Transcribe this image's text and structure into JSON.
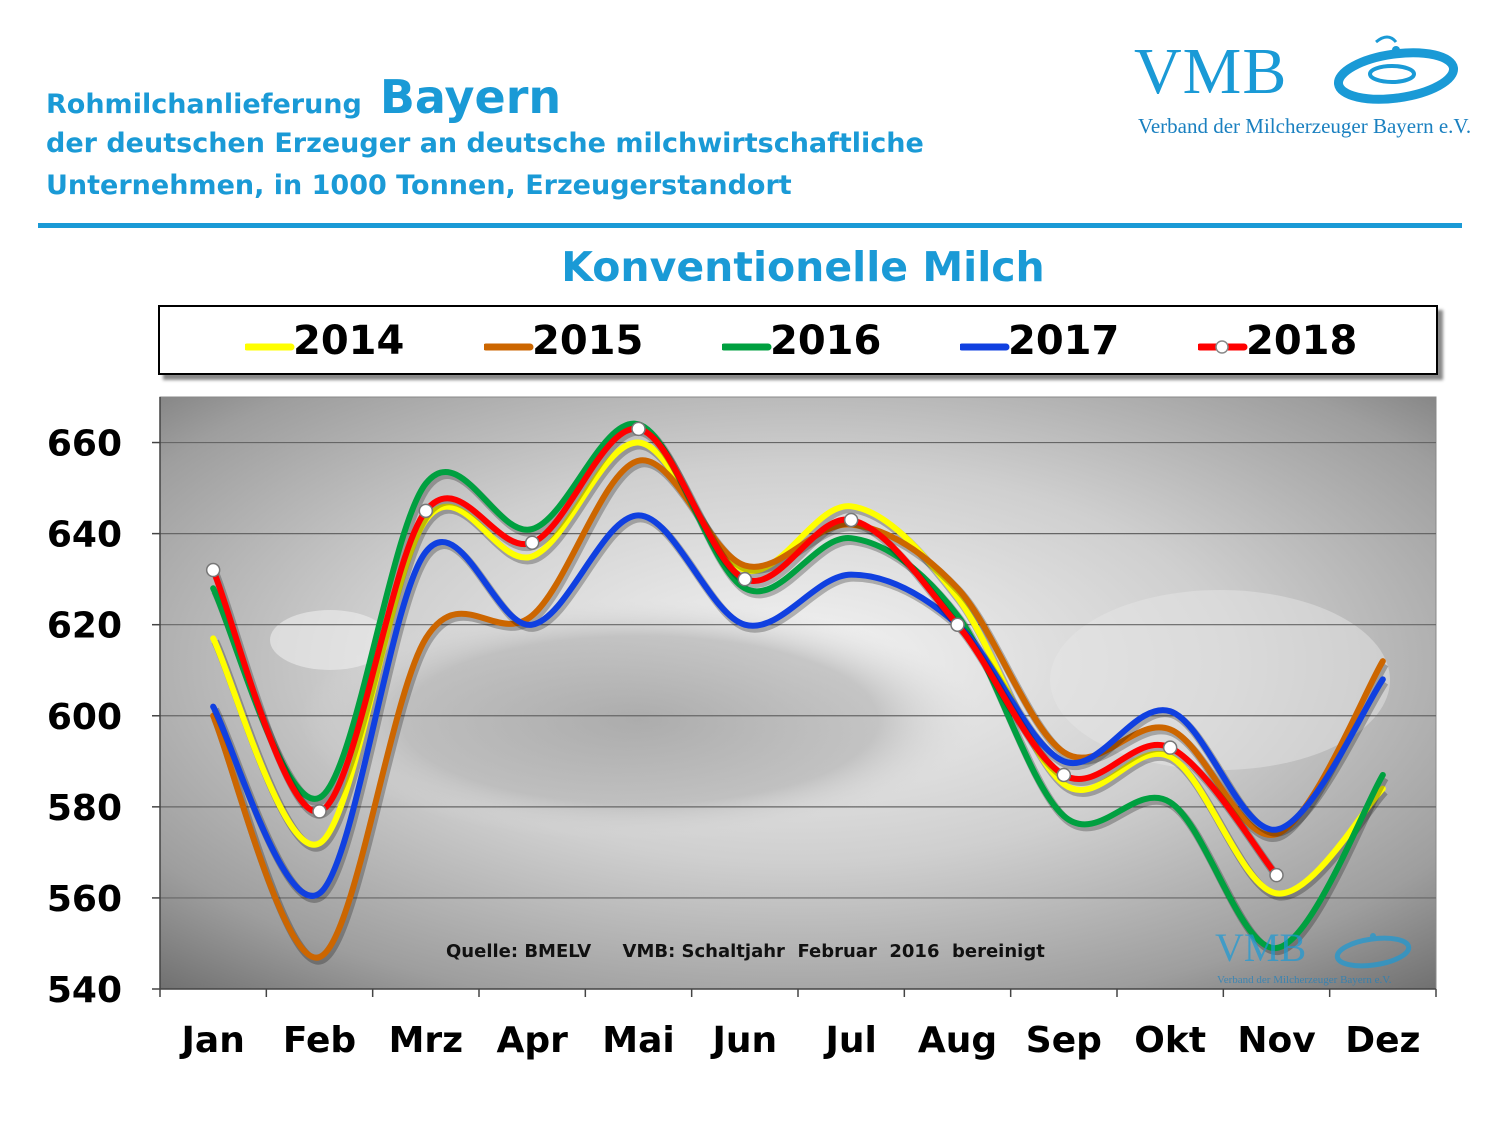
{
  "header": {
    "title_small": "Rohmilchanlieferung",
    "title_big": "Bayern",
    "line2": "der deutschen Erzeuger an deutsche milchwirtschaftliche",
    "line3": "Unternehmen, in 1000 Tonnen, Erzeugerstandort"
  },
  "logo": {
    "name": "VMB",
    "subtitle": "Verband der Milcherzeuger Bayern e.V.",
    "icon": "vmb-swirl-icon"
  },
  "source_note": "Quelle: BMELV     VMB: Schaltjahr  Februar  2016  bereinigt",
  "colors": {
    "title_blue": "#1a9ad6",
    "2014": "#ffff00",
    "2015": "#cc6600",
    "2016": "#00a040",
    "2017": "#1040e0",
    "2018": "#ff0000"
  },
  "chart_data": {
    "type": "line",
    "title": "Konventionelle Milch",
    "xlabel": "",
    "ylabel": "",
    "categories": [
      "Jan",
      "Feb",
      "Mrz",
      "Apr",
      "Mai",
      "Jun",
      "Jul",
      "Aug",
      "Sep",
      "Okt",
      "Nov",
      "Dez"
    ],
    "ylim": [
      540,
      670
    ],
    "yticks": [
      540,
      560,
      580,
      600,
      620,
      640,
      660
    ],
    "grid": true,
    "legend": "top",
    "background": "milk-splash-photo",
    "series": [
      {
        "name": "2014",
        "color": "#ffff00",
        "values": [
          617,
          572,
          643,
          635,
          660,
          632,
          646,
          626,
          585,
          591,
          561,
          584
        ]
      },
      {
        "name": "2015",
        "color": "#cc6600",
        "values": [
          600,
          547,
          617,
          622,
          656,
          633,
          642,
          628,
          592,
          597,
          574,
          612
        ]
      },
      {
        "name": "2016",
        "color": "#00a040",
        "values": [
          628,
          582,
          651,
          641,
          664,
          628,
          639,
          622,
          578,
          581,
          549,
          587
        ]
      },
      {
        "name": "2017",
        "color": "#1040e0",
        "values": [
          602,
          561,
          636,
          620,
          644,
          620,
          631,
          620,
          590,
          601,
          575,
          608
        ]
      },
      {
        "name": "2018",
        "color": "#ff0000",
        "markers": true,
        "values": [
          632,
          579,
          645,
          638,
          663,
          630,
          643,
          620,
          587,
          593,
          565,
          null
        ]
      }
    ]
  }
}
